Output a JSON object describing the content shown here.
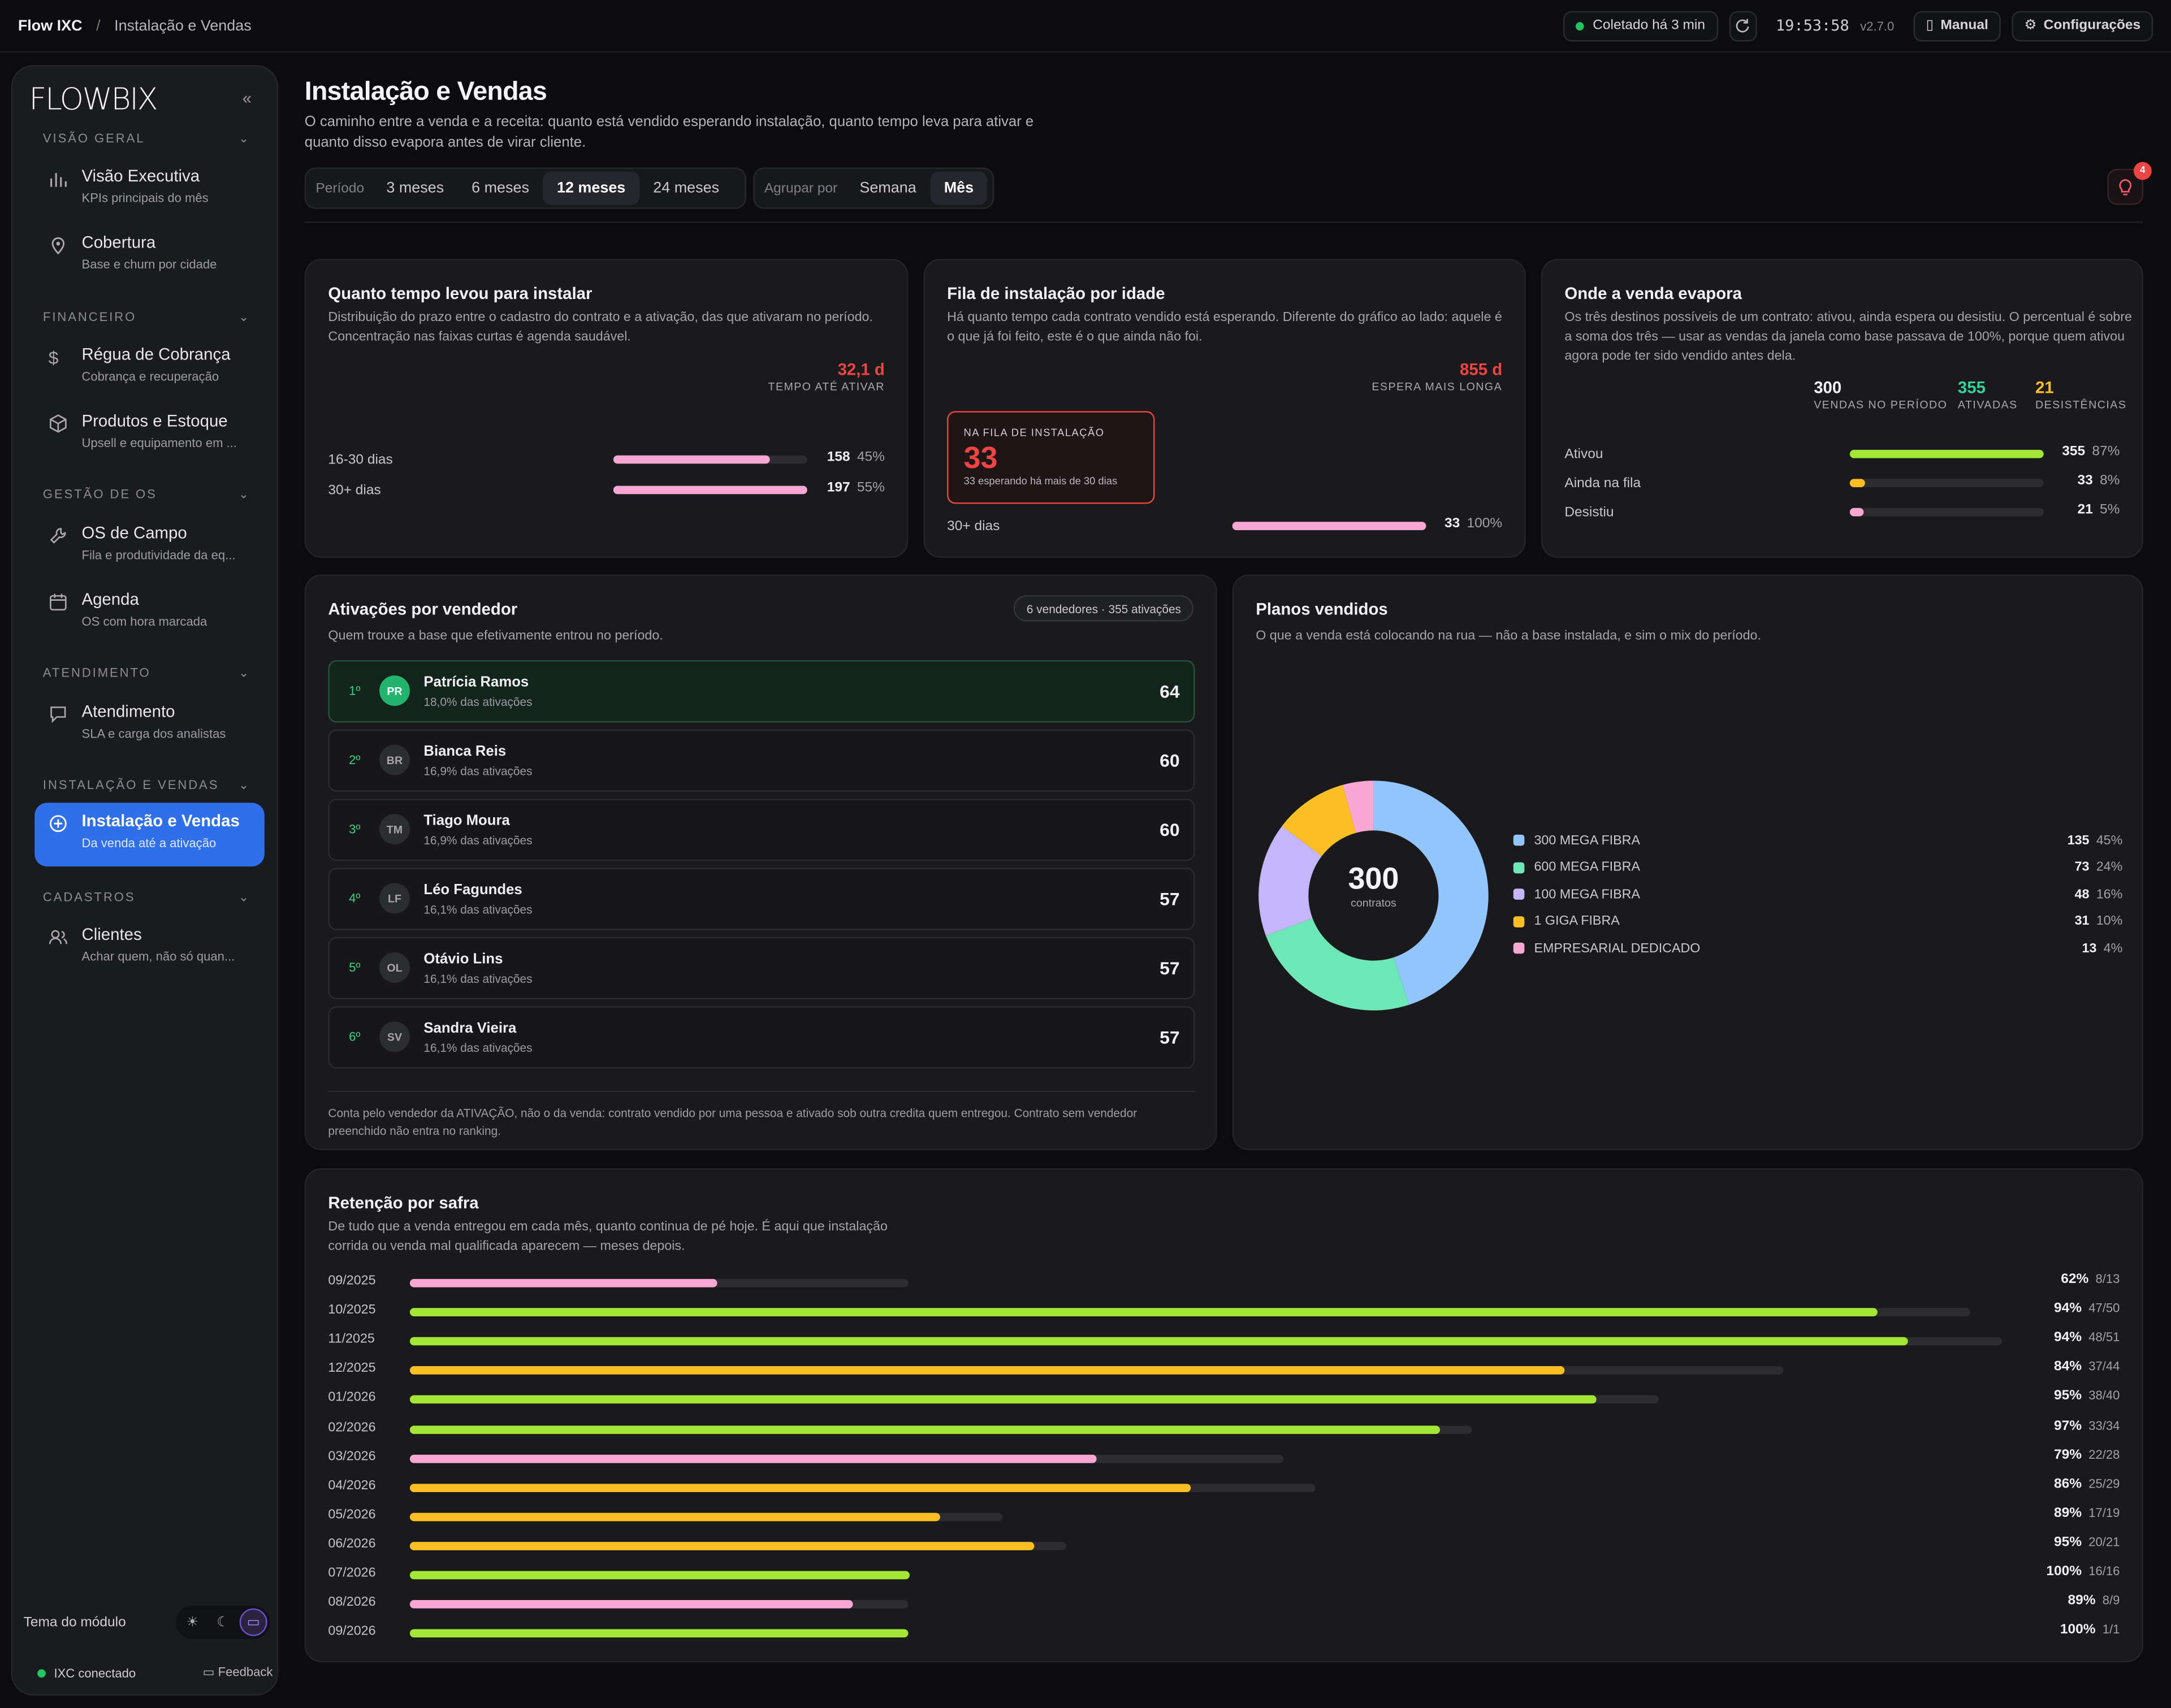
{
  "topbar": {
    "app": "Flow IXC",
    "crumb": "Instalação e Vendas",
    "collected": "Coletado há 3 min",
    "time": "19:53:58",
    "version": "v2.7.0",
    "manual": "Manual",
    "settings": "Configurações"
  },
  "colors": {
    "accent": "#2f6fea",
    "green": "#a3e635",
    "pink": "#f9a8d4",
    "yellow": "#fbbf24",
    "red": "#ef4444",
    "teal": "#34d399"
  },
  "sidebar": {
    "logo": "FLOWBIX",
    "sections": [
      {
        "title": "VISÃO GERAL",
        "items": [
          {
            "label": "Visão Executiva",
            "sub": "KPIs principais do mês",
            "icon": "bar-chart-icon"
          },
          {
            "label": "Cobertura",
            "sub": "Base e churn por cidade",
            "icon": "map-pin-icon"
          }
        ]
      },
      {
        "title": "FINANCEIRO",
        "items": [
          {
            "label": "Régua de Cobrança",
            "sub": "Cobrança e recuperação",
            "icon": "dollar-icon"
          },
          {
            "label": "Produtos e Estoque",
            "sub": "Upsell e equipamento em ...",
            "icon": "box-icon"
          }
        ]
      },
      {
        "title": "GESTÃO DE OS",
        "items": [
          {
            "label": "OS de Campo",
            "sub": "Fila e produtividade da eq...",
            "icon": "wrench-icon"
          },
          {
            "label": "Agenda",
            "sub": "OS com hora marcada",
            "icon": "calendar-icon"
          }
        ]
      },
      {
        "title": "ATENDIMENTO",
        "items": [
          {
            "label": "Atendimento",
            "sub": "SLA e carga dos analistas",
            "icon": "chat-icon"
          }
        ]
      },
      {
        "title": "INSTALAÇÃO E VENDAS",
        "items": [
          {
            "label": "Instalação e Vendas",
            "sub": "Da venda até a ativação",
            "icon": "plus-circle-icon"
          }
        ]
      },
      {
        "title": "CADASTROS",
        "items": [
          {
            "label": "Clientes",
            "sub": "Achar quem, não só quan...",
            "icon": "users-icon"
          }
        ]
      }
    ],
    "theme_label": "Tema do módulo",
    "status": "IXC conectado",
    "feedback": "Feedback"
  },
  "header": {
    "title": "Instalação e Vendas",
    "subtitle": "O caminho entre a venda e a receita: quanto está vendido esperando instalação, quanto tempo leva para ativar e quanto disso evapora antes de virar cliente."
  },
  "filters": {
    "period_label": "Período",
    "periods": [
      "3 meses",
      "6 meses",
      "12 meses",
      "24 meses"
    ],
    "period_selected": "12 meses",
    "group_label": "Agrupar por",
    "groups": [
      "Semana",
      "Mês"
    ],
    "group_selected": "Mês",
    "alerts": "4"
  },
  "install_time": {
    "title": "Quanto tempo levou para instalar",
    "desc": "Distribuição do prazo entre o cadastro do contrato e a ativação, das que ativaram no período. Concentração nas faixas curtas é agenda saudável.",
    "kpi_value": "32,1 d",
    "kpi_label": "TEMPO ATÉ ATIVAR",
    "rows": [
      {
        "label": "16-30 dias",
        "count": "158",
        "pct": "45%",
        "fill": 0.81,
        "color": "#f9a8d4"
      },
      {
        "label": "30+ dias",
        "count": "197",
        "pct": "55%",
        "fill": 1.0,
        "color": "#f9a8d4"
      }
    ]
  },
  "queue": {
    "title": "Fila de instalação por idade",
    "desc": "Há quanto tempo cada contrato vendido está esperando. Diferente do gráfico ao lado: aquele é o que já foi feito, este é o que ainda não foi.",
    "kpi_value": "855 d",
    "kpi_label": "ESPERA MAIS LONGA",
    "box_label": "NA FILA DE INSTALAÇÃO",
    "box_value": "33",
    "box_sub": "33 esperando há mais de 30 dias",
    "rows": [
      {
        "label": "30+ dias",
        "count": "33",
        "pct": "100%",
        "fill": 1.0,
        "color": "#f9a8d4"
      }
    ]
  },
  "evaporate": {
    "title": "Onde a venda evapora",
    "desc": "Os três destinos possíveis de um contrato: ativou, ainda espera ou desistiu. O percentual é sobre a soma dos três — usar as vendas da janela como base passava de 100%, porque quem ativou agora pode ter sido vendido antes dela.",
    "kpis": [
      {
        "value": "300",
        "label": "VENDAS NO PERÍODO",
        "color": "#f1f1f3"
      },
      {
        "value": "355",
        "label": "ATIVADAS",
        "color": "#34d399"
      },
      {
        "value": "21",
        "label": "DESISTÊNCIAS",
        "color": "#fbbf24"
      }
    ],
    "rows": [
      {
        "label": "Ativou",
        "count": "355",
        "pct": "87%",
        "fill": 1.0,
        "color": "#a3e635"
      },
      {
        "label": "Ainda na fila",
        "count": "33",
        "pct": "8%",
        "fill": 0.08,
        "color": "#fbbf24"
      },
      {
        "label": "Desistiu",
        "count": "21",
        "pct": "5%",
        "fill": 0.05,
        "color": "#f9a8d4"
      }
    ]
  },
  "sellers": {
    "title": "Ativações por vendedor",
    "desc": "Quem trouxe a base que efetivamente entrou no período.",
    "tag": "6 vendedores · 355 ativações",
    "items": [
      {
        "pos": "1º",
        "initials": "PR",
        "name": "Patrícia Ramos",
        "pct": "18,0% das ativações",
        "count": "64"
      },
      {
        "pos": "2º",
        "initials": "BR",
        "name": "Bianca Reis",
        "pct": "16,9% das ativações",
        "count": "60"
      },
      {
        "pos": "3º",
        "initials": "TM",
        "name": "Tiago Moura",
        "pct": "16,9% das ativações",
        "count": "60"
      },
      {
        "pos": "4º",
        "initials": "LF",
        "name": "Léo Fagundes",
        "pct": "16,1% das ativações",
        "count": "57"
      },
      {
        "pos": "5º",
        "initials": "OL",
        "name": "Otávio Lins",
        "pct": "16,1% das ativações",
        "count": "57"
      },
      {
        "pos": "6º",
        "initials": "SV",
        "name": "Sandra Vieira",
        "pct": "16,1% das ativações",
        "count": "57"
      }
    ],
    "note": "Conta pelo vendedor da ATIVAÇÃO, não o da venda: contrato vendido por uma pessoa e ativado sob outra credita quem entregou. Contrato sem vendedor preenchido não entra no ranking."
  },
  "plans": {
    "title": "Planos vendidos",
    "desc": "O que a venda está colocando na rua — não a base instalada, e sim o mix do período.",
    "center_value": "300",
    "center_label": "contratos"
  },
  "chart_data": {
    "type": "pie",
    "categories": [
      "300 MEGA FIBRA",
      "600 MEGA FIBRA",
      "100 MEGA FIBRA",
      "1 GIGA FIBRA",
      "EMPRESARIAL DEDICADO"
    ],
    "values": [
      135,
      73,
      48,
      31,
      13
    ],
    "percents": [
      "45%",
      "24%",
      "16%",
      "10%",
      "4%"
    ],
    "colors": [
      "#93c5fd",
      "#6ee7b7",
      "#c4b5fd",
      "#fbbf24",
      "#f9a8d4"
    ],
    "legend": "right"
  },
  "retention": {
    "title": "Retenção por safra",
    "desc": "De tudo que a venda entregou em cada mês, quanto continua de pé hoje. É aqui que instalação corrida ou venda mal qualificada aparecem — meses depois.",
    "rows": [
      {
        "month": "09/2025",
        "pct": "62%",
        "ratio": "8/13",
        "active": 8,
        "total": 13,
        "color": "#f9a8d4"
      },
      {
        "month": "10/2025",
        "pct": "94%",
        "ratio": "47/50",
        "active": 47,
        "total": 50,
        "color": "#a3e635"
      },
      {
        "month": "11/2025",
        "pct": "94%",
        "ratio": "48/51",
        "active": 48,
        "total": 51,
        "color": "#a3e635"
      },
      {
        "month": "12/2025",
        "pct": "84%",
        "ratio": "37/44",
        "active": 37,
        "total": 44,
        "color": "#fbbf24"
      },
      {
        "month": "01/2026",
        "pct": "95%",
        "ratio": "38/40",
        "active": 38,
        "total": 40,
        "color": "#a3e635"
      },
      {
        "month": "02/2026",
        "pct": "97%",
        "ratio": "33/34",
        "active": 33,
        "total": 34,
        "color": "#a3e635"
      },
      {
        "month": "03/2026",
        "pct": "79%",
        "ratio": "22/28",
        "active": 22,
        "total": 28,
        "color": "#f9a8d4"
      },
      {
        "month": "04/2026",
        "pct": "86%",
        "ratio": "25/29",
        "active": 25,
        "total": 29,
        "color": "#fbbf24"
      },
      {
        "month": "05/2026",
        "pct": "89%",
        "ratio": "17/19",
        "active": 17,
        "total": 19,
        "color": "#fbbf24"
      },
      {
        "month": "06/2026",
        "pct": "95%",
        "ratio": "20/21",
        "active": 20,
        "total": 21,
        "color": "#fbbf24"
      },
      {
        "month": "07/2026",
        "pct": "100%",
        "ratio": "16/16",
        "active": 16,
        "total": 16,
        "color": "#a3e635"
      },
      {
        "month": "08/2026",
        "pct": "89%",
        "ratio": "8/9",
        "active": 8,
        "total": 9,
        "color": "#f9a8d4"
      },
      {
        "month": "09/2026",
        "pct": "100%",
        "ratio": "1/1",
        "active": 1,
        "total": 1,
        "color": "#a3e635"
      }
    ]
  }
}
